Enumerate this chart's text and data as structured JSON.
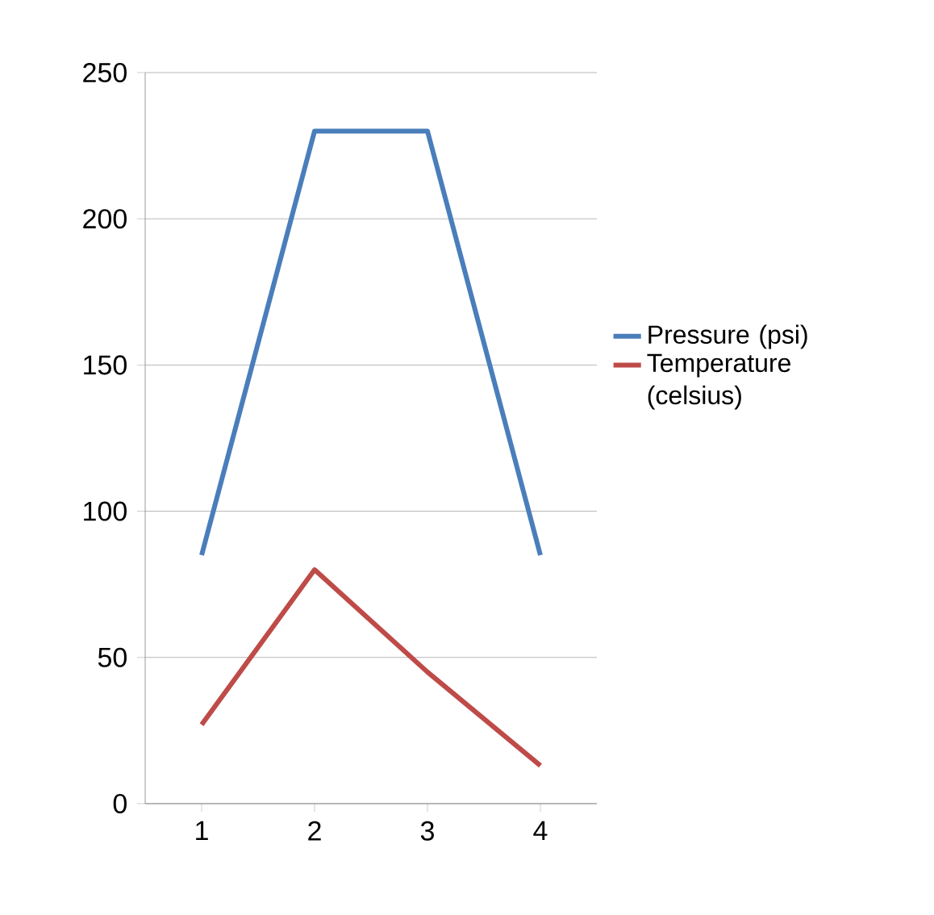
{
  "chart_data": {
    "type": "line",
    "categories": [
      "1",
      "2",
      "3",
      "4"
    ],
    "series": [
      {
        "name": "Pressure (psi)",
        "color": "#4a7ebb",
        "values": [
          85,
          230,
          230,
          85
        ]
      },
      {
        "name": "Temperature (celsius)",
        "color": "#be4b48",
        "values": [
          27,
          80,
          45,
          13
        ]
      }
    ],
    "ylim": [
      0,
      250
    ],
    "yticks": [
      0,
      50,
      100,
      150,
      200,
      250
    ],
    "grid": "y",
    "legend": "right",
    "marker": "none",
    "line_style": "solid"
  }
}
